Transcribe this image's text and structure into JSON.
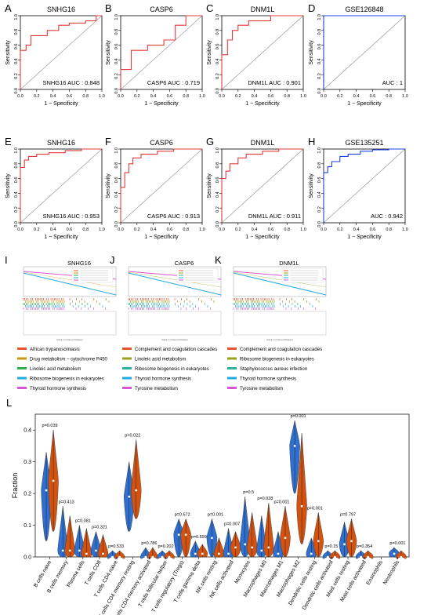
{
  "figure": {
    "roc_axis": {
      "xlabel": "1 − Specificity",
      "ylabel": "Sensitivity",
      "ticks": [
        "0.0",
        "0.2",
        "0.4",
        "0.6",
        "0.8",
        "1.0"
      ]
    },
    "gsea_footer": "Rank in Ordered Dataset",
    "violin_colors": {
      "group1": "#2f6fd0",
      "group2": "#d4520f"
    },
    "roc_colors": {
      "gene": "#e23b3b",
      "dataset": "#1f3fe0",
      "diagonal": "#9a9a9a"
    }
  },
  "chart_data": [
    {
      "panel": "A",
      "type": "line",
      "title": "SNHG16",
      "auc_label": "SNHG16 AUC : 0.848",
      "xlabel": "1 − Specificity",
      "ylabel": "Sensitivity",
      "xlim": [
        0,
        1
      ],
      "ylim": [
        0,
        1
      ],
      "x": [
        0,
        0,
        0.07,
        0.07,
        0.13,
        0.13,
        0.33,
        0.33,
        0.47,
        0.47,
        0.6,
        0.6,
        0.8,
        0.8,
        0.93,
        0.93,
        1
      ],
      "y": [
        0,
        0.53,
        0.53,
        0.6,
        0.6,
        0.73,
        0.73,
        0.8,
        0.8,
        0.87,
        0.87,
        0.9,
        0.9,
        0.93,
        0.93,
        1,
        1
      ]
    },
    {
      "panel": "B",
      "type": "line",
      "title": "CASP6",
      "auc_label": "CASP6 AUC : 0.719",
      "xlabel": "1 − Specificity",
      "ylabel": "Sensitivity",
      "xlim": [
        0,
        1
      ],
      "ylim": [
        0,
        1
      ],
      "x": [
        0,
        0,
        0.13,
        0.13,
        0.33,
        0.33,
        0.53,
        0.53,
        0.67,
        0.67,
        0.8,
        0.8,
        1
      ],
      "y": [
        0,
        0.27,
        0.27,
        0.53,
        0.53,
        0.6,
        0.6,
        0.67,
        0.67,
        0.87,
        0.87,
        1,
        1
      ]
    },
    {
      "panel": "C",
      "type": "line",
      "title": "DNM1L",
      "auc_label": "DNM1L AUC : 0.901",
      "xlabel": "1 − Specificity",
      "ylabel": "Sensitivity",
      "xlim": [
        0,
        1
      ],
      "ylim": [
        0,
        1
      ],
      "x": [
        0,
        0,
        0.07,
        0.07,
        0.13,
        0.13,
        0.2,
        0.2,
        0.33,
        0.33,
        0.6,
        0.6,
        1
      ],
      "y": [
        0,
        0.47,
        0.47,
        0.67,
        0.67,
        0.8,
        0.8,
        0.87,
        0.87,
        0.93,
        0.93,
        1,
        1
      ]
    },
    {
      "panel": "D",
      "type": "line",
      "title": "GSE126848",
      "auc_label": "AUC : 1",
      "xlabel": "1 − Specificity",
      "ylabel": "Sensitivity",
      "xlim": [
        0,
        1
      ],
      "ylim": [
        0,
        1
      ],
      "x": [
        0,
        0,
        1
      ],
      "y": [
        0,
        1,
        1
      ]
    },
    {
      "panel": "E",
      "type": "line",
      "title": "SNHG16",
      "auc_label": "SNHG16 AUC : 0.953",
      "xlabel": "1 − Specificity",
      "ylabel": "Sensitivity",
      "xlim": [
        0,
        1
      ],
      "ylim": [
        0,
        1
      ],
      "x": [
        0,
        0,
        0.05,
        0.05,
        0.1,
        0.1,
        0.2,
        0.2,
        0.35,
        0.35,
        0.55,
        0.55,
        0.75,
        0.75,
        1
      ],
      "y": [
        0,
        0.75,
        0.75,
        0.85,
        0.85,
        0.9,
        0.9,
        0.93,
        0.93,
        0.95,
        0.95,
        0.98,
        0.98,
        1,
        1
      ]
    },
    {
      "panel": "F",
      "type": "line",
      "title": "CASP6",
      "auc_label": "CASP6 AUC : 0.913",
      "xlabel": "1 − Specificity",
      "ylabel": "Sensitivity",
      "xlim": [
        0,
        1
      ],
      "ylim": [
        0,
        1
      ],
      "x": [
        0,
        0,
        0.05,
        0.05,
        0.1,
        0.1,
        0.15,
        0.15,
        0.25,
        0.25,
        0.45,
        0.45,
        0.65,
        0.65,
        1
      ],
      "y": [
        0,
        0.48,
        0.48,
        0.68,
        0.68,
        0.8,
        0.8,
        0.88,
        0.88,
        0.93,
        0.93,
        0.97,
        0.97,
        1,
        1
      ]
    },
    {
      "panel": "G",
      "type": "line",
      "title": "DNM1L",
      "auc_label": "DNM1L AUC : 0.911",
      "xlabel": "1 − Specificity",
      "ylabel": "Sensitivity",
      "xlim": [
        0,
        1
      ],
      "ylim": [
        0,
        1
      ],
      "x": [
        0,
        0,
        0.05,
        0.05,
        0.1,
        0.1,
        0.2,
        0.2,
        0.3,
        0.3,
        0.5,
        0.5,
        0.7,
        0.7,
        1
      ],
      "y": [
        0,
        0.6,
        0.6,
        0.7,
        0.7,
        0.8,
        0.8,
        0.88,
        0.88,
        0.93,
        0.93,
        0.97,
        0.97,
        1,
        1
      ]
    },
    {
      "panel": "H",
      "type": "line",
      "title": "GSE135251",
      "auc_label": "AUC : 0.942",
      "xlabel": "1 − Specificity",
      "ylabel": "Sensitivity",
      "xlim": [
        0,
        1
      ],
      "ylim": [
        0,
        1
      ],
      "x": [
        0,
        0,
        0.05,
        0.05,
        0.1,
        0.1,
        0.2,
        0.2,
        0.3,
        0.3,
        0.45,
        0.45,
        0.6,
        0.6,
        0.8,
        0.8,
        1
      ],
      "y": [
        0,
        0.68,
        0.68,
        0.76,
        0.76,
        0.83,
        0.83,
        0.9,
        0.9,
        0.93,
        0.93,
        0.97,
        0.97,
        0.99,
        0.99,
        1,
        1
      ]
    },
    {
      "panel": "I",
      "type": "line",
      "title": "SNHG16",
      "legend": [
        {
          "label": "African trypanosomiasis",
          "color": "#e8542f"
        },
        {
          "label": "Drug metabolism − cytochrome P450",
          "color": "#c79a14"
        },
        {
          "label": "Linoleic acid metabolism",
          "color": "#2bb34a"
        },
        {
          "label": "Ribosome biogenesis in eukaryotes",
          "color": "#23a9e0"
        },
        {
          "label": "Thyroid hormone synthesis",
          "color": "#d955d6"
        }
      ]
    },
    {
      "panel": "J",
      "type": "line",
      "title": "CASP6",
      "legend": [
        {
          "label": "Complement and coagulation cascades",
          "color": "#e8542f"
        },
        {
          "label": "Linoleic acid metabolism",
          "color": "#9aa21c"
        },
        {
          "label": "Ribosome biogenesis in eukaryotes",
          "color": "#2bb39a"
        },
        {
          "label": "Thyroid hormone synthesis",
          "color": "#23a9e0"
        },
        {
          "label": "Tyrosine metabolism",
          "color": "#d955d6"
        }
      ]
    },
    {
      "panel": "K",
      "type": "line",
      "title": "DNM1L",
      "legend": [
        {
          "label": "Complement and coagulation cascades",
          "color": "#e8542f"
        },
        {
          "label": "Ribosome biogenesis in eukaryotes",
          "color": "#9aa21c"
        },
        {
          "label": "Staphylococcus aureus infection",
          "color": "#2bb39a"
        },
        {
          "label": "Thyroid hormone synthesis",
          "color": "#23a9e0"
        },
        {
          "label": "Tyrosine metabolism",
          "color": "#d955d6"
        }
      ]
    },
    {
      "panel": "L",
      "type": "violin",
      "ylabel": "Fraction",
      "ylim": [
        0,
        0.45
      ],
      "yticks": [
        "0.0",
        "0.1",
        "0.2",
        "0.3",
        "0.4"
      ],
      "categories": [
        {
          "name": "B cells naive",
          "p": "p=0.039",
          "g1": [
            0.05,
            0.33,
            0.21
          ],
          "g2": [
            0.08,
            0.4,
            0.24
          ]
        },
        {
          "name": "B cells memory",
          "p": "p=0.413",
          "g1": [
            0.0,
            0.16,
            0.02
          ],
          "g2": [
            0.0,
            0.13,
            0.02
          ]
        },
        {
          "name": "Plasma cells",
          "p": "p=0.081",
          "g1": [
            0.0,
            0.1,
            0.02
          ],
          "g2": [
            0.0,
            0.09,
            0.01
          ]
        },
        {
          "name": "T cells CD8",
          "p": "p=0.321",
          "g1": [
            0.0,
            0.08,
            0.02
          ],
          "g2": [
            0.0,
            0.07,
            0.01
          ]
        },
        {
          "name": "T cells CD4 naive",
          "p": "p=0.533",
          "g1": [
            0.0,
            0.02,
            0.0
          ],
          "g2": [
            0.0,
            0.02,
            0.0
          ]
        },
        {
          "name": "T cells CD4 memory resting",
          "p": "p=0.022",
          "g1": [
            0.08,
            0.3,
            0.19
          ],
          "g2": [
            0.12,
            0.37,
            0.21
          ]
        },
        {
          "name": "T cells CD4 memory activated",
          "p": "p=0.786",
          "g1": [
            0.0,
            0.03,
            0.0
          ],
          "g2": [
            0.0,
            0.03,
            0.0
          ]
        },
        {
          "name": "T cells follicular helper",
          "p": "p=0.202",
          "g1": [
            0.0,
            0.02,
            0.0
          ],
          "g2": [
            0.0,
            0.02,
            0.0
          ]
        },
        {
          "name": "T cells regulatory (Tregs)",
          "p": "p=0.672",
          "g1": [
            0.0,
            0.12,
            0.07
          ],
          "g2": [
            0.0,
            0.12,
            0.07
          ]
        },
        {
          "name": "T cells gamma delta",
          "p": "p=0.599",
          "g1": [
            0.0,
            0.05,
            0.01
          ],
          "g2": [
            0.0,
            0.04,
            0.01
          ]
        },
        {
          "name": "NK cells resting",
          "p": "p=0.001",
          "g1": [
            0.0,
            0.12,
            0.06
          ],
          "g2": [
            0.0,
            0.06,
            0.01
          ]
        },
        {
          "name": "NK cells activated",
          "p": "p=0.007",
          "g1": [
            0.0,
            0.09,
            0.01
          ],
          "g2": [
            0.0,
            0.08,
            0.03
          ]
        },
        {
          "name": "Monocytes",
          "p": "p=0.5",
          "g1": [
            0.0,
            0.19,
            0.04
          ],
          "g2": [
            0.0,
            0.14,
            0.03
          ]
        },
        {
          "name": "Macrophages M0",
          "p": "p=0.028",
          "g1": [
            0.0,
            0.13,
            0.02
          ],
          "g2": [
            0.0,
            0.17,
            0.03
          ]
        },
        {
          "name": "Macrophages M1",
          "p": "p=0.001",
          "g1": [
            0.0,
            0.08,
            0.01
          ],
          "g2": [
            0.0,
            0.16,
            0.06
          ]
        },
        {
          "name": "Macrophages M2",
          "p": "p=0.001",
          "g1": [
            0.2,
            0.43,
            0.35
          ],
          "g2": [
            0.04,
            0.39,
            0.16
          ]
        },
        {
          "name": "Dendritic cells resting",
          "p": "p=0.001",
          "g1": [
            0.0,
            0.06,
            0.01
          ],
          "g2": [
            0.0,
            0.14,
            0.05
          ]
        },
        {
          "name": "Dendritic cells activated",
          "p": "p=0.15",
          "g1": [
            0.0,
            0.02,
            0.0
          ],
          "g2": [
            0.0,
            0.02,
            0.0
          ]
        },
        {
          "name": "Mast cells resting",
          "p": "p=0.797",
          "g1": [
            0.0,
            0.11,
            0.04
          ],
          "g2": [
            0.0,
            0.12,
            0.05
          ]
        },
        {
          "name": "Mast cells activated",
          "p": "p=0.354",
          "g1": [
            0.0,
            0.02,
            0.0
          ],
          "g2": [
            0.0,
            0.02,
            0.0
          ]
        },
        {
          "name": "Eosinophils",
          "p": "",
          "g1": [
            0.0,
            0.0,
            0.0
          ],
          "g2": [
            0.0,
            0.0,
            0.0
          ]
        },
        {
          "name": "Neutrophils",
          "p": "p=0.001",
          "g1": [
            0.0,
            0.03,
            0.01
          ],
          "g2": [
            0.0,
            0.02,
            0.0
          ]
        }
      ]
    }
  ]
}
